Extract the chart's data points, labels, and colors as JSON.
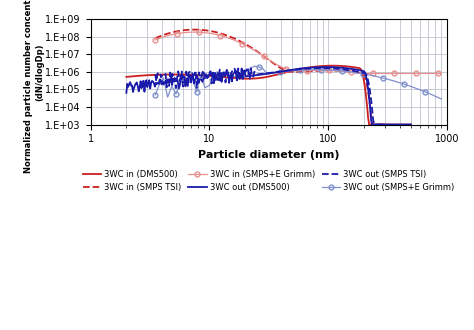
{
  "title": "",
  "xlabel": "Particle diameter (nm)",
  "ylabel": "Normalized particle number concentration (dN/dlogDp)",
  "xlim": [
    1,
    1000
  ],
  "ylim": [
    1000.0,
    1000000000.0
  ],
  "background_color": "#ffffff",
  "grid_color": "#b0b8c8",
  "legend": [
    {
      "label": "3WC in (DMS500)",
      "color": "#cc2020",
      "linestyle": "-"
    },
    {
      "label": "3WC in (SMPS TSI)",
      "color": "#cc2020",
      "linestyle": "--"
    },
    {
      "label": "3WC in (SMPS+E Grimm)",
      "color": "#e89090",
      "linestyle": "-o"
    },
    {
      "label": "3WC out (DMS500)",
      "color": "#1515b0",
      "linestyle": "-"
    },
    {
      "label": "3WC out (SMPS TSI)",
      "color": "#1515b0",
      "linestyle": "--"
    },
    {
      "label": "3WC out (SMPS+E Grimm)",
      "color": "#8090cc",
      "linestyle": "-o"
    }
  ]
}
